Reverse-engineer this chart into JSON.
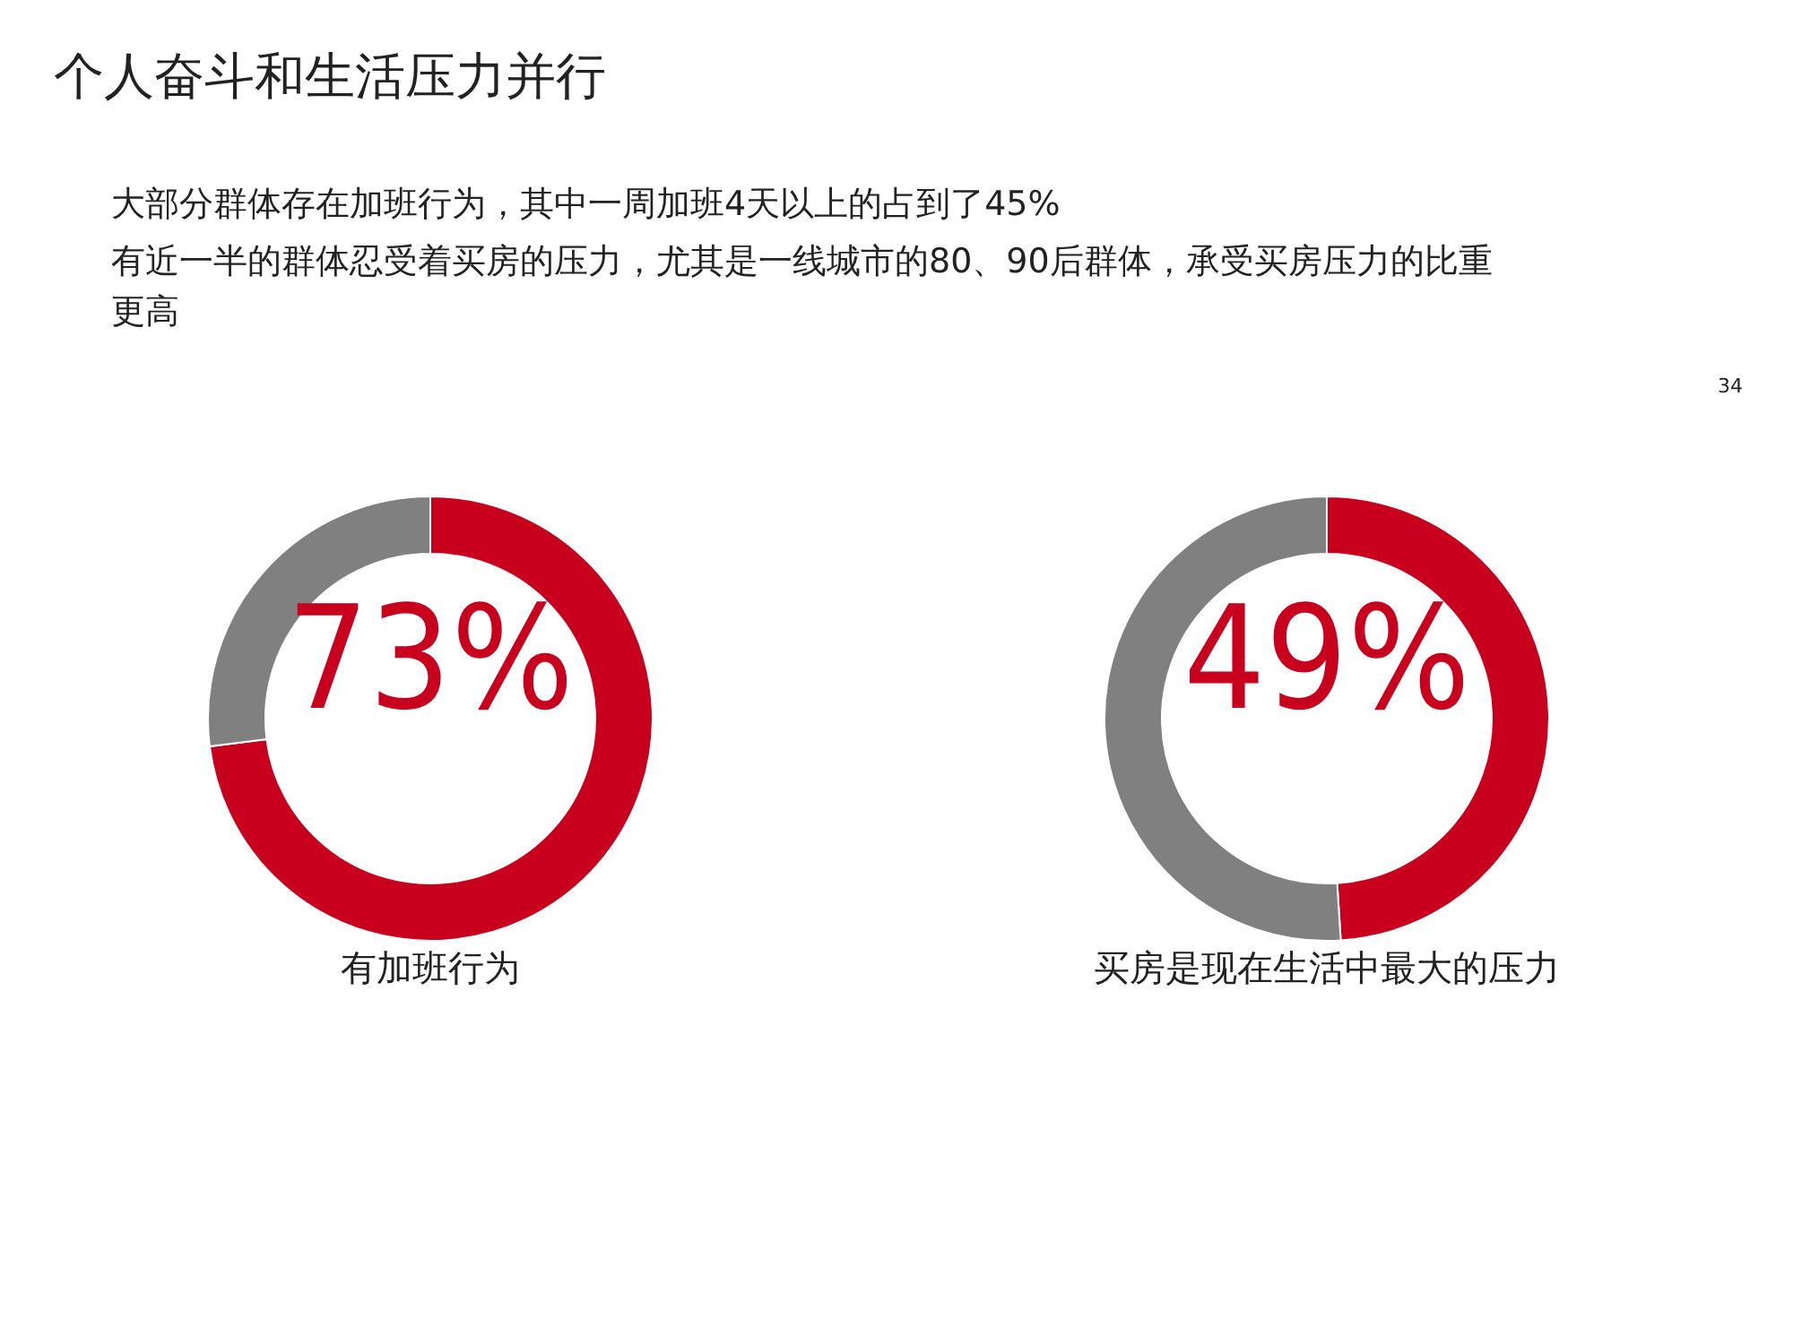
{
  "chart_data": [
    {
      "type": "other",
      "title": "个人奋斗和生活压力并行",
      "annotations": [
        "大部分群体存在加班行为，其中一周加班4天以上的占到了45%",
        "有近一半的群体忍受着买房的压力，尤其是一线城市的80、90后群体，承受买房压力的比重更高",
        "34"
      ]
    },
    {
      "type": "donut",
      "categories": [
        null,
        null
      ],
      "values": [
        73,
        27
      ],
      "colors": [
        "#c8001e",
        "#808080"
      ],
      "value_labels": [
        "73%",
        null
      ],
      "xlabel": "有加班行为"
    },
    {
      "type": "donut",
      "categories": [
        null,
        null
      ],
      "values": [
        49,
        51
      ],
      "colors": [
        "#c8001e",
        "#808080"
      ],
      "value_labels": [
        "49%",
        null
      ],
      "xlabel": "买房是现在生活中最大的压力"
    }
  ]
}
